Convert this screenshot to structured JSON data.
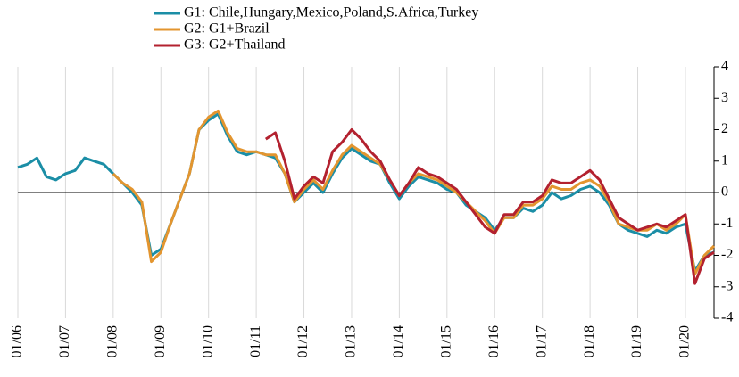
{
  "chart_data": {
    "type": "line",
    "x": [
      2006.0,
      2006.2,
      2006.4,
      2006.6,
      2006.8,
      2007.0,
      2007.2,
      2007.4,
      2007.6,
      2007.8,
      2008.0,
      2008.2,
      2008.4,
      2008.6,
      2008.8,
      2009.0,
      2009.2,
      2009.4,
      2009.6,
      2009.8,
      2010.0,
      2010.2,
      2010.4,
      2010.6,
      2010.8,
      2011.0,
      2011.2,
      2011.4,
      2011.6,
      2011.8,
      2012.0,
      2012.2,
      2012.4,
      2012.6,
      2012.8,
      2013.0,
      2013.2,
      2013.4,
      2013.6,
      2013.8,
      2014.0,
      2014.2,
      2014.4,
      2014.6,
      2014.8,
      2015.0,
      2015.2,
      2015.4,
      2015.6,
      2015.8,
      2016.0,
      2016.2,
      2016.4,
      2016.6,
      2016.8,
      2017.0,
      2017.2,
      2017.4,
      2017.6,
      2017.8,
      2018.0,
      2018.2,
      2018.4,
      2018.6,
      2018.8,
      2019.0,
      2019.2,
      2019.4,
      2019.6,
      2019.8,
      2020.0,
      2020.2,
      2020.4,
      2020.6
    ],
    "series": [
      {
        "name": "G1: Chile,Hungary,Mexico,Poland,S.Africa,Turkey",
        "color": "#1b8ea6",
        "values": [
          0.8,
          0.9,
          1.1,
          0.5,
          0.4,
          0.6,
          0.7,
          1.1,
          1.0,
          0.9,
          0.6,
          0.3,
          0.0,
          -0.4,
          -2.0,
          -1.8,
          -1.0,
          -0.2,
          0.6,
          2.0,
          2.3,
          2.5,
          1.8,
          1.3,
          1.2,
          1.3,
          1.2,
          1.1,
          0.6,
          -0.3,
          0.0,
          0.3,
          0.0,
          0.6,
          1.1,
          1.4,
          1.2,
          1.0,
          0.9,
          0.3,
          -0.2,
          0.2,
          0.5,
          0.4,
          0.3,
          0.1,
          0.0,
          -0.4,
          -0.6,
          -0.8,
          -1.2,
          -0.8,
          -0.8,
          -0.5,
          -0.6,
          -0.4,
          0.0,
          -0.2,
          -0.1,
          0.1,
          0.2,
          0.0,
          -0.4,
          -1.0,
          -1.2,
          -1.3,
          -1.4,
          -1.2,
          -1.3,
          -1.1,
          -1.0,
          -2.5,
          -2.0,
          -1.9
        ]
      },
      {
        "name": "G2: G1+Brazil",
        "color": "#e3952f",
        "values": [
          null,
          null,
          null,
          null,
          null,
          null,
          null,
          null,
          null,
          null,
          0.6,
          0.3,
          0.1,
          -0.3,
          -2.2,
          -1.9,
          -1.0,
          -0.2,
          0.6,
          2.0,
          2.4,
          2.6,
          1.9,
          1.4,
          1.3,
          1.3,
          1.2,
          1.2,
          0.6,
          -0.3,
          0.1,
          0.4,
          0.1,
          0.7,
          1.2,
          1.5,
          1.3,
          1.1,
          0.9,
          0.4,
          -0.1,
          0.3,
          0.6,
          0.5,
          0.4,
          0.2,
          0.0,
          -0.3,
          -0.6,
          -0.9,
          -1.3,
          -0.8,
          -0.8,
          -0.4,
          -0.4,
          -0.2,
          0.2,
          0.1,
          0.1,
          0.3,
          0.4,
          0.2,
          -0.3,
          -1.0,
          -1.1,
          -1.2,
          -1.2,
          -1.0,
          -1.2,
          -1.0,
          -0.7,
          -2.6,
          -2.0,
          -1.7
        ]
      },
      {
        "name": "G3: G2+Thailand",
        "color": "#b3212f",
        "values": [
          null,
          null,
          null,
          null,
          null,
          null,
          null,
          null,
          null,
          null,
          null,
          null,
          null,
          null,
          null,
          null,
          null,
          null,
          null,
          null,
          null,
          null,
          null,
          null,
          null,
          null,
          1.7,
          1.9,
          1.0,
          -0.2,
          0.2,
          0.5,
          0.3,
          1.3,
          1.6,
          2.0,
          1.7,
          1.3,
          1.0,
          0.4,
          -0.1,
          0.3,
          0.8,
          0.6,
          0.5,
          0.3,
          0.1,
          -0.3,
          -0.7,
          -1.1,
          -1.3,
          -0.7,
          -0.7,
          -0.3,
          -0.3,
          -0.1,
          0.4,
          0.3,
          0.3,
          0.5,
          0.7,
          0.4,
          -0.2,
          -0.8,
          -1.0,
          -1.2,
          -1.1,
          -1.0,
          -1.1,
          -0.9,
          -0.7,
          -2.9,
          -2.1,
          -1.9
        ]
      }
    ],
    "xlim": [
      2006,
      2020.6
    ],
    "xticks": [
      {
        "value": 2006,
        "label": "01/06"
      },
      {
        "value": 2007,
        "label": "01/07"
      },
      {
        "value": 2008,
        "label": "01/08"
      },
      {
        "value": 2009,
        "label": "01/09"
      },
      {
        "value": 2010,
        "label": "01/10"
      },
      {
        "value": 2011,
        "label": "01/11"
      },
      {
        "value": 2012,
        "label": "01/12"
      },
      {
        "value": 2013,
        "label": "01/13"
      },
      {
        "value": 2014,
        "label": "01/14"
      },
      {
        "value": 2015,
        "label": "01/15"
      },
      {
        "value": 2016,
        "label": "01/16"
      },
      {
        "value": 2017,
        "label": "01/17"
      },
      {
        "value": 2018,
        "label": "01/18"
      },
      {
        "value": 2019,
        "label": "01/19"
      },
      {
        "value": 2020,
        "label": "01/20"
      }
    ],
    "ylim": [
      -4,
      4
    ],
    "yticks": [
      -4,
      -3,
      -2,
      -1,
      0,
      1,
      2,
      3,
      4
    ],
    "grid": true,
    "legend": "top-left"
  }
}
